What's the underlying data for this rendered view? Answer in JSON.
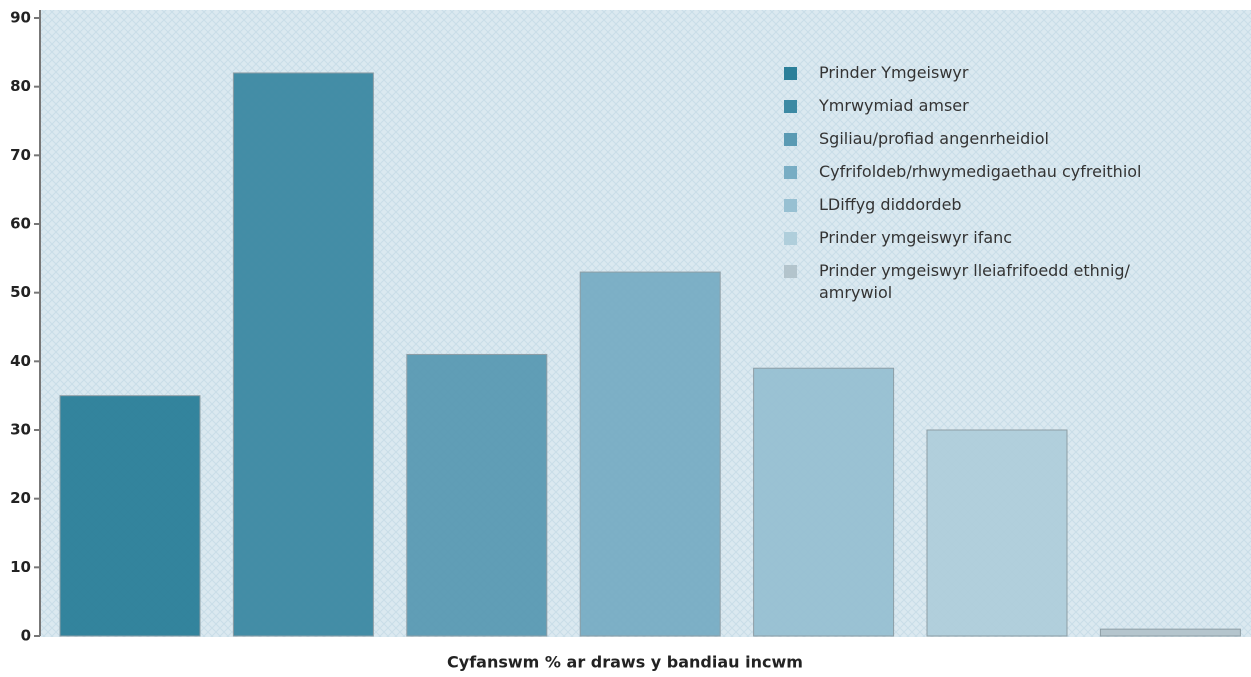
{
  "chart_data": {
    "type": "bar",
    "x_label": "Cyfanswm % ar draws y bandiau incwm",
    "categories": [
      null
    ],
    "series": [
      {
        "name": "Prinder Ymgeiswyr",
        "color": "#2b7f99",
        "values": [
          35
        ]
      },
      {
        "name": "Ymrwymiad amser",
        "color": "#3c89a3",
        "values": [
          82
        ]
      },
      {
        "name": "Sgiliau/profiad angenrheidiol",
        "color": "#5a9ab3",
        "values": [
          41
        ]
      },
      {
        "name": "Cyfrifoldeb/rhwymedigaethau cyfreithiol",
        "color": "#78adc4",
        "values": [
          53
        ]
      },
      {
        "name": "LDiffyg diddordeb",
        "color": "#97c0d2",
        "values": [
          39
        ]
      },
      {
        "name": "Prinder ymgeiswyr ifanc",
        "color": "#afcedb",
        "values": [
          30
        ]
      },
      {
        "name": "Prinder ymgeiswyr lleiafrifoedd ethnig/ amrywiol",
        "color": "#b3c4cc",
        "values": [
          1
        ]
      }
    ],
    "ylim": [
      0,
      90
    ],
    "yticks": [
      0,
      10,
      20,
      30,
      40,
      50,
      60,
      70,
      80,
      90
    ],
    "legend": "upper right"
  }
}
